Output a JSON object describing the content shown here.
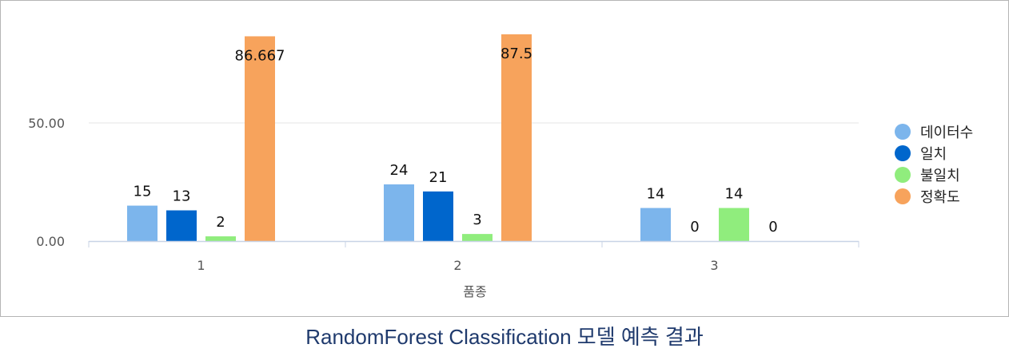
{
  "caption": "RandomForest Classification 모델 예측 결과",
  "chart_data": {
    "type": "bar",
    "categories": [
      "1",
      "2",
      "3"
    ],
    "xlabel": "품종",
    "ylabel": "",
    "ylim": [
      0,
      87.5
    ],
    "yticks": [
      "0.00",
      "50.00"
    ],
    "grid": true,
    "legend_position": "right",
    "series": [
      {
        "name": "데이터수",
        "color": "#7cb5ec",
        "values": [
          15,
          24,
          14
        ],
        "labels": [
          "15",
          "24",
          "14"
        ]
      },
      {
        "name": "일치",
        "color": "#0066cc",
        "values": [
          13,
          21,
          0
        ],
        "labels": [
          "13",
          "21",
          "0"
        ]
      },
      {
        "name": "불일치",
        "color": "#90ed7d",
        "values": [
          2,
          3,
          14
        ],
        "labels": [
          "2",
          "3",
          "14"
        ]
      },
      {
        "name": "정확도",
        "color": "#f7a35c",
        "values": [
          86.667,
          87.5,
          0
        ],
        "labels": [
          "86.667",
          "87.5",
          "0"
        ]
      }
    ]
  }
}
